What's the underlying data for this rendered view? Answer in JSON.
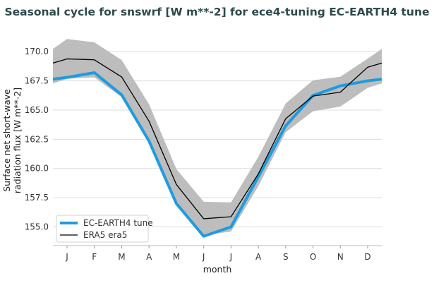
{
  "chart_data": {
    "type": "line",
    "title": "Seasonal cycle for snswrf [W m**-2] for ece4-tuning EC-EARTH4 tune",
    "xlabel": "month",
    "ylabel_lines": [
      "Surface net short-wave",
      "radiation flux [W m**-2]"
    ],
    "categories": [
      "J",
      "F",
      "M",
      "A",
      "M",
      "J",
      "J",
      "A",
      "S",
      "O",
      "N",
      "D"
    ],
    "ylim": [
      153.4,
      171.4
    ],
    "yticks": [
      "155.0",
      "157.5",
      "160.0",
      "162.5",
      "165.0",
      "167.5",
      "170.0"
    ],
    "ytick_values": [
      155,
      157.5,
      160,
      162.5,
      165,
      167.5,
      170
    ],
    "grid": "horizontal",
    "legend_position": "lower-left",
    "series": [
      {
        "name": "EC-EARTH4 tune",
        "color": "#1f9be0",
        "values": [
          167.8,
          168.2,
          166.3,
          162.35,
          157.0,
          154.2,
          155.0,
          159.3,
          163.65,
          166.25,
          167.07,
          167.5
        ]
      },
      {
        "name": "ERA5 era5",
        "color": "#000000",
        "values": [
          169.38,
          169.3,
          167.83,
          164.05,
          158.63,
          155.7,
          155.87,
          159.54,
          164.26,
          166.2,
          166.53,
          168.67
        ]
      }
    ],
    "band": {
      "color": "#bdbdbd",
      "upper": [
        171.08,
        170.8,
        169.28,
        165.5,
        159.95,
        157.15,
        157.1,
        161.0,
        165.56,
        167.55,
        167.85,
        169.4
      ],
      "lower": [
        167.67,
        167.8,
        166.1,
        162.2,
        156.8,
        154.3,
        154.6,
        158.5,
        163.1,
        164.9,
        165.3,
        166.9
      ]
    }
  }
}
